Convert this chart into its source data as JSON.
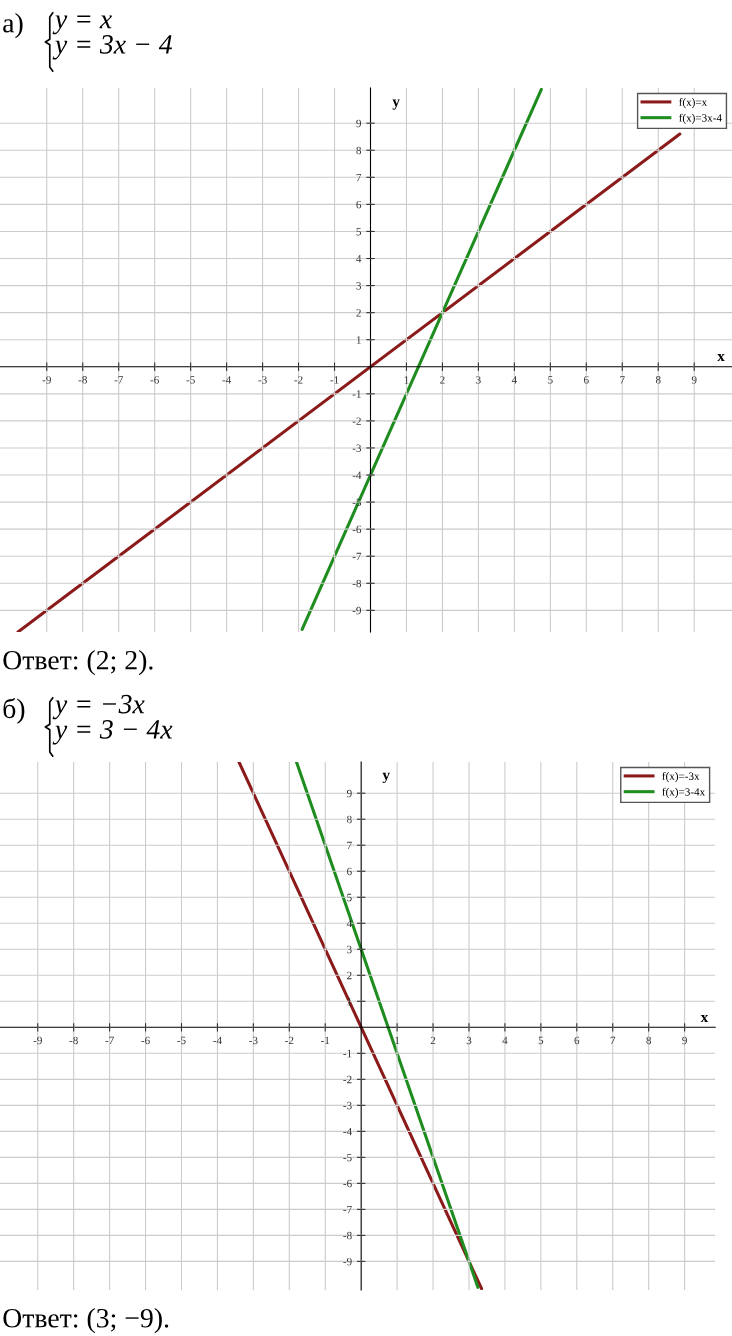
{
  "chart_data": [
    {
      "type": "line",
      "title": "а)",
      "subtitle": "y = x\ny = 3x − 4",
      "xlabel": "x",
      "ylabel": "y",
      "xlim": [
        -10.3,
        10.05
      ],
      "ylim": [
        -9.8,
        10.3
      ],
      "xticks": [
        -9,
        -8,
        -7,
        -6,
        -5,
        -4,
        -3,
        -2,
        -1,
        1,
        2,
        3,
        4,
        5,
        6,
        7,
        8,
        9
      ],
      "yticks": [
        -9,
        -8,
        -7,
        -6,
        -5,
        -4,
        -3,
        -2,
        -1,
        1,
        2,
        3,
        4,
        5,
        6,
        7,
        8,
        9
      ],
      "grid": true,
      "legend": "top right",
      "series": [
        {
          "name": "f(x)=x",
          "color": "#8b1a1a",
          "x": [
            -9.8,
            8.6
          ],
          "values": [
            -9.8,
            8.6
          ]
        },
        {
          "name": "f(x)=3x-4",
          "color": "#1e8c1e",
          "x": [
            -1.9,
            4.75
          ],
          "values": [
            -9.7,
            10.25
          ]
        }
      ],
      "annotations": [
        "Ответ: (2; 2)."
      ]
    },
    {
      "type": "line",
      "title": "б)",
      "subtitle": "y = −3x\ny = 3 − 4x",
      "xlabel": "x",
      "ylabel": "y",
      "xlim": [
        -10.05,
        9.85
      ],
      "ylim": [
        -10.1,
        10.2
      ],
      "xticks": [
        -9,
        -8,
        -7,
        -6,
        -5,
        -4,
        -3,
        -2,
        -1,
        1,
        2,
        3,
        4,
        5,
        6,
        7,
        8,
        9
      ],
      "yticks": [
        -9,
        -8,
        -7,
        -6,
        -5,
        -4,
        -3,
        -2,
        -1,
        1,
        2,
        3,
        4,
        5,
        6,
        7,
        8,
        9
      ],
      "grid": true,
      "legend": "top right",
      "series": [
        {
          "name": "f(x)=-3x",
          "color": "#8b1a1a",
          "x": [
            -3.4,
            3.35
          ],
          "values": [
            10.2,
            -10.05
          ]
        },
        {
          "name": "f(x)=3-4x",
          "color": "#1e8c1e",
          "x": [
            -1.8,
            3.25
          ],
          "values": [
            10.2,
            -10
          ]
        }
      ],
      "annotations": [
        "Ответ: (3; −9)."
      ]
    }
  ]
}
